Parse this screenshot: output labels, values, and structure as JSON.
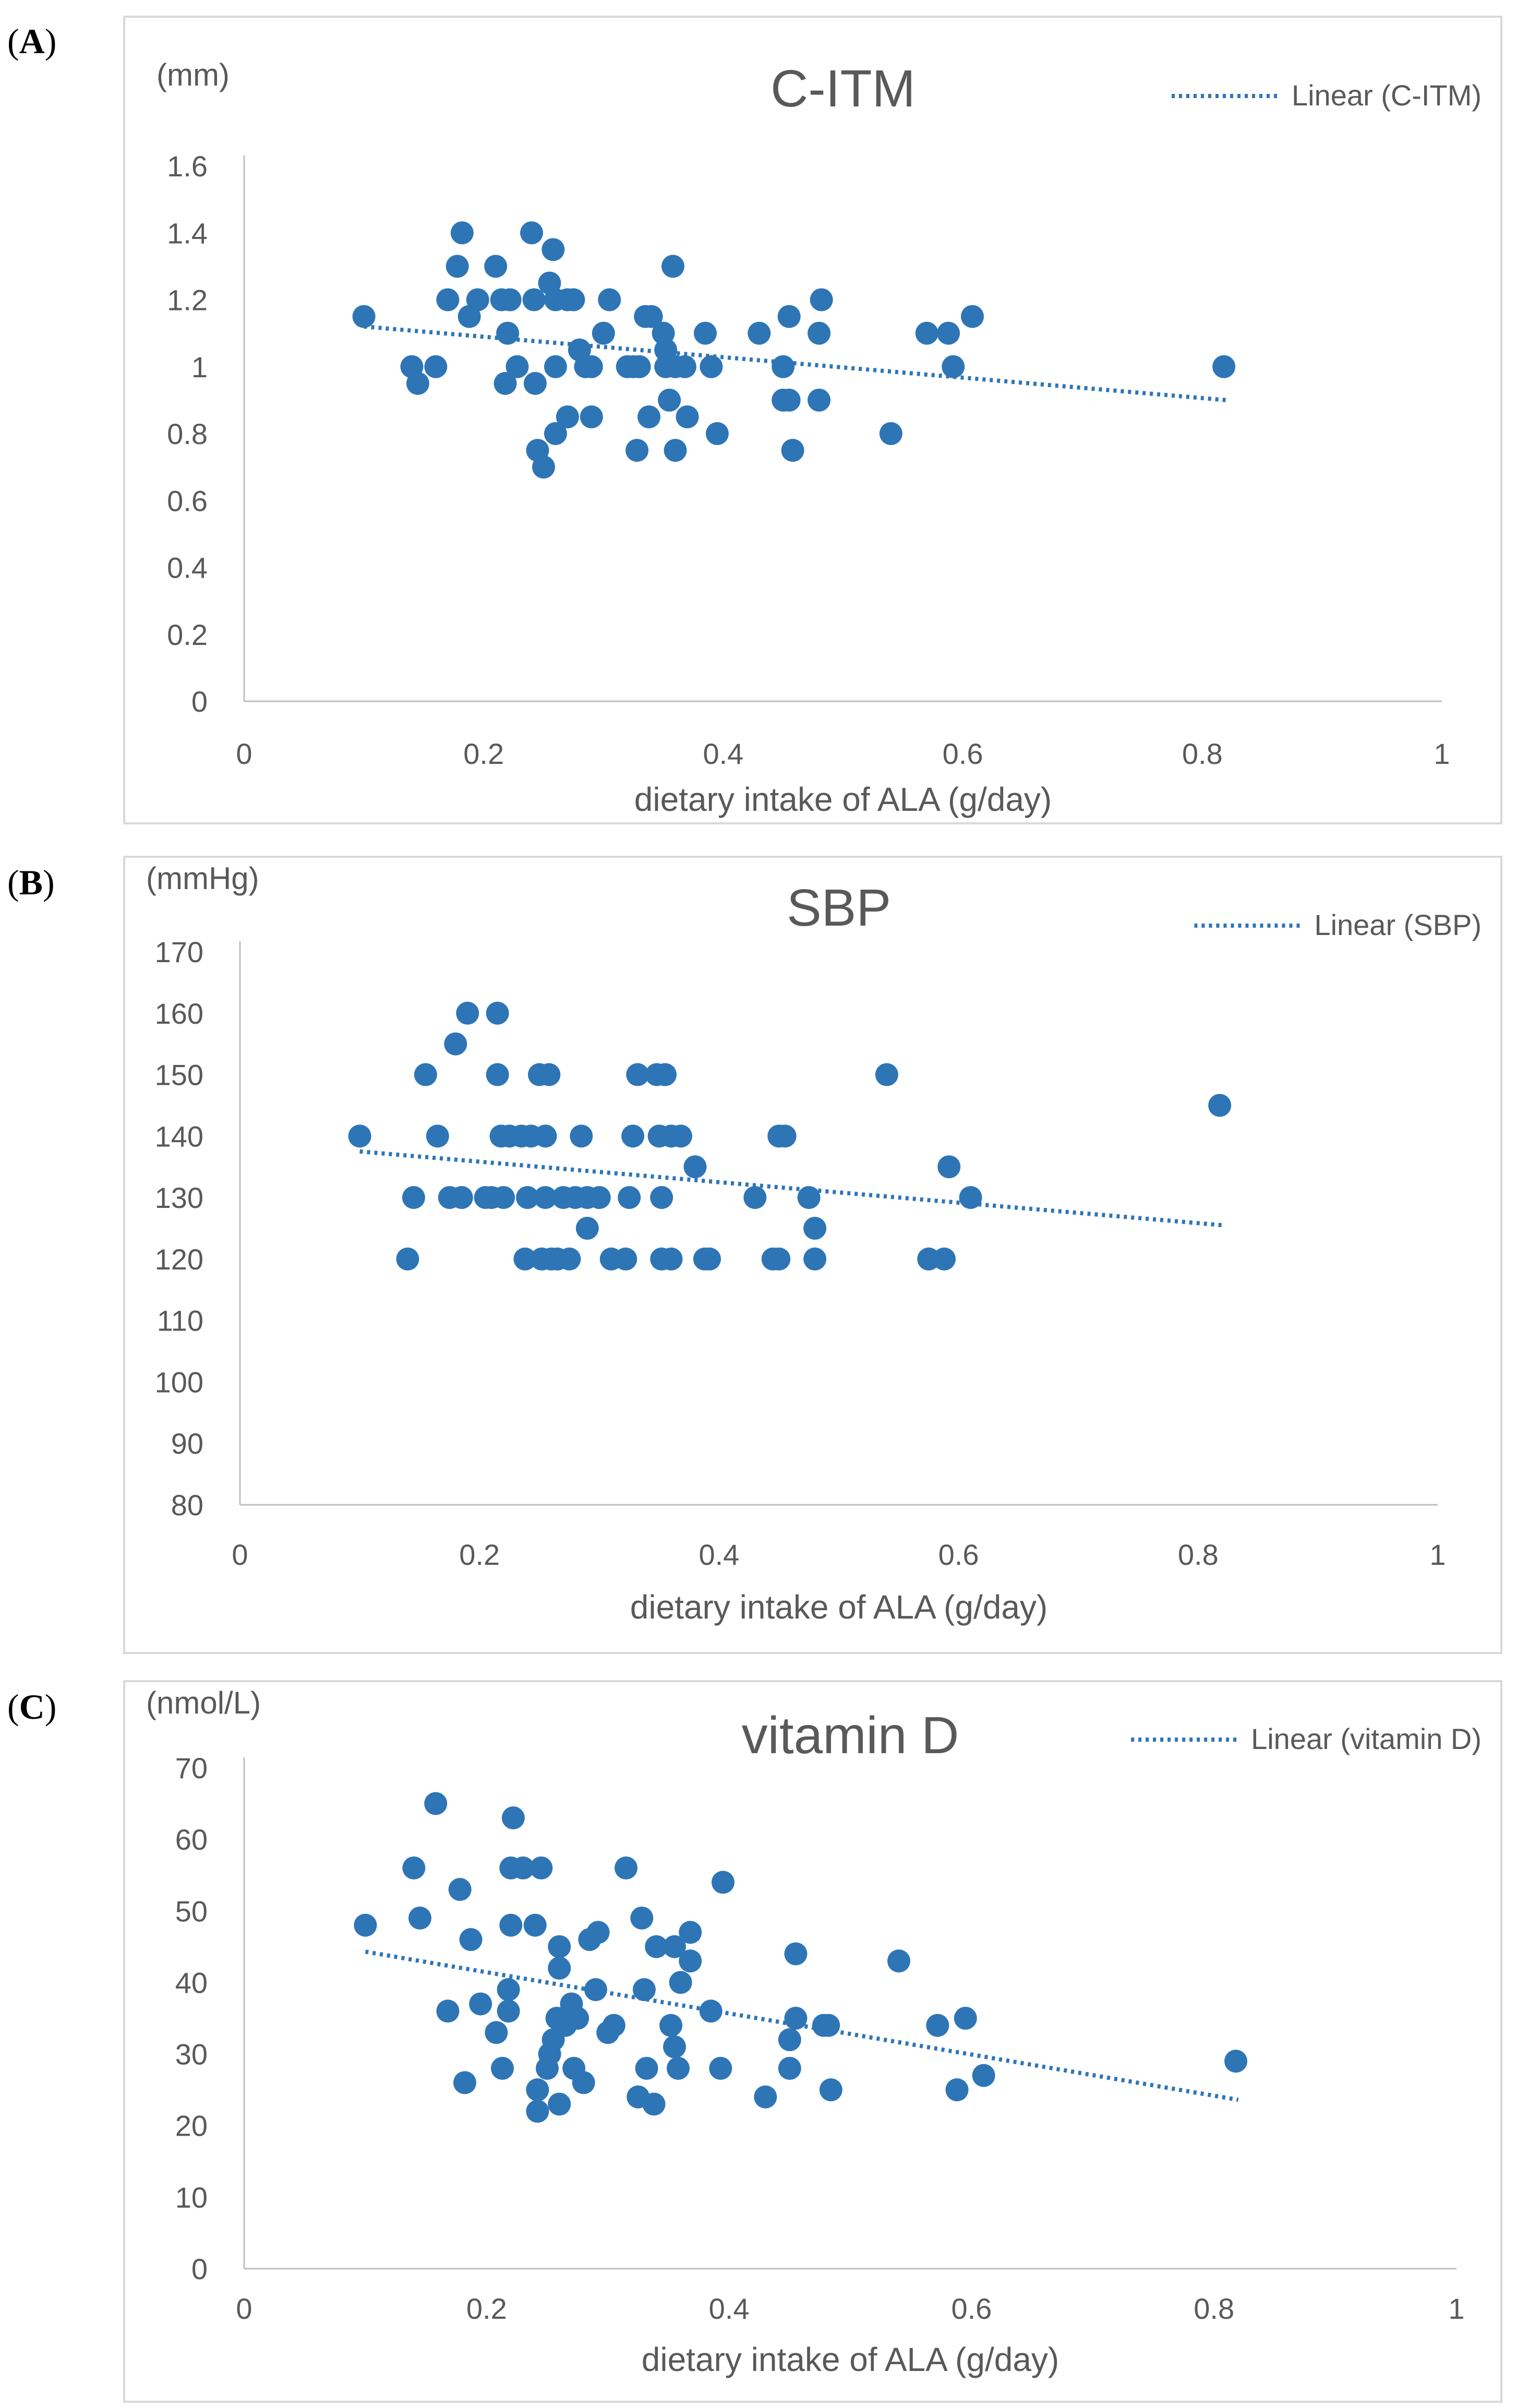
{
  "panels": [
    {
      "letter_open": "(",
      "letter": "A",
      "letter_close": ")"
    },
    {
      "letter_open": "(",
      "letter": "B",
      "letter_close": ")"
    },
    {
      "letter_open": "(",
      "letter": "C",
      "letter_close": ")"
    }
  ],
  "colors": {
    "marker": "#2e75b6",
    "trend": "#2e75b6",
    "axis": "#bfbfbf",
    "text": "#595959",
    "border": "#d9d9d9"
  },
  "chart_data": [
    {
      "type": "scatter",
      "title": "C-ITM",
      "unit_label": "(mm)",
      "xlabel": "dietary intake of ALA (g/day)",
      "xlim": [
        0,
        1
      ],
      "ylim": [
        0,
        1.6
      ],
      "xticks": [
        0,
        0.2,
        0.4,
        0.6,
        0.8,
        1
      ],
      "xtick_labels": [
        "0",
        "0.2",
        "0.4",
        "0.6",
        "0.8",
        "1"
      ],
      "yticks": [
        0,
        0.2,
        0.4,
        0.6,
        0.8,
        1.0,
        1.2,
        1.4,
        1.6
      ],
      "ytick_labels": [
        "0",
        "0.2",
        "0.4",
        "0.6",
        "0.8",
        "1",
        "1.2",
        "1.4",
        "1.6"
      ],
      "legend": "Linear (C-ITM)",
      "legend_position": "top-right",
      "trendline": {
        "x": [
          0.1,
          0.82
        ],
        "y": [
          1.12,
          0.9
        ]
      },
      "points": [
        [
          0.1,
          1.15
        ],
        [
          0.14,
          1.0
        ],
        [
          0.145,
          0.95
        ],
        [
          0.16,
          1.0
        ],
        [
          0.17,
          1.2
        ],
        [
          0.178,
          1.3
        ],
        [
          0.182,
          1.4
        ],
        [
          0.188,
          1.15
        ],
        [
          0.195,
          1.2
        ],
        [
          0.21,
          1.3
        ],
        [
          0.215,
          1.2
        ],
        [
          0.218,
          0.95
        ],
        [
          0.22,
          1.1
        ],
        [
          0.222,
          1.2
        ],
        [
          0.228,
          1.0
        ],
        [
          0.24,
          1.4
        ],
        [
          0.242,
          1.2
        ],
        [
          0.243,
          0.95
        ],
        [
          0.245,
          0.75
        ],
        [
          0.25,
          0.7
        ],
        [
          0.255,
          1.25
        ],
        [
          0.258,
          1.35
        ],
        [
          0.26,
          1.2
        ],
        [
          0.26,
          0.8
        ],
        [
          0.26,
          1.0
        ],
        [
          0.27,
          1.2
        ],
        [
          0.27,
          0.85
        ],
        [
          0.275,
          1.2
        ],
        [
          0.28,
          1.05
        ],
        [
          0.285,
          1.0
        ],
        [
          0.29,
          1.0
        ],
        [
          0.29,
          0.85
        ],
        [
          0.3,
          1.1
        ],
        [
          0.305,
          1.2
        ],
        [
          0.32,
          1.0
        ],
        [
          0.325,
          1.0
        ],
        [
          0.328,
          0.75
        ],
        [
          0.33,
          1.0
        ],
        [
          0.335,
          1.15
        ],
        [
          0.338,
          0.85
        ],
        [
          0.34,
          1.15
        ],
        [
          0.35,
          1.1
        ],
        [
          0.352,
          1.05
        ],
        [
          0.352,
          1.0
        ],
        [
          0.355,
          0.9
        ],
        [
          0.358,
          1.3
        ],
        [
          0.36,
          0.75
        ],
        [
          0.36,
          1.0
        ],
        [
          0.368,
          1.0
        ],
        [
          0.37,
          0.85
        ],
        [
          0.385,
          1.1
        ],
        [
          0.39,
          1.0
        ],
        [
          0.395,
          0.8
        ],
        [
          0.43,
          1.1
        ],
        [
          0.45,
          1.0
        ],
        [
          0.45,
          0.9
        ],
        [
          0.455,
          1.15
        ],
        [
          0.455,
          0.9
        ],
        [
          0.458,
          0.75
        ],
        [
          0.48,
          0.9
        ],
        [
          0.48,
          1.1
        ],
        [
          0.482,
          1.2
        ],
        [
          0.54,
          0.8
        ],
        [
          0.57,
          1.1
        ],
        [
          0.588,
          1.1
        ],
        [
          0.592,
          1.0
        ],
        [
          0.608,
          1.15
        ],
        [
          0.818,
          1.0
        ]
      ]
    },
    {
      "type": "scatter",
      "title": "SBP",
      "unit_label": "(mmHg)",
      "xlabel": "dietary intake of ALA (g/day)",
      "xlim": [
        0,
        1
      ],
      "ylim": [
        80,
        170
      ],
      "xticks": [
        0,
        0.2,
        0.4,
        0.6,
        0.8,
        1
      ],
      "xtick_labels": [
        "0",
        "0.2",
        "0.4",
        "0.6",
        "0.8",
        "1"
      ],
      "yticks": [
        80,
        90,
        100,
        110,
        120,
        130,
        140,
        150,
        160,
        170
      ],
      "ytick_labels": [
        "80",
        "90",
        "100",
        "110",
        "120",
        "130",
        "140",
        "150",
        "160",
        "170"
      ],
      "legend": "Linear (SBP)",
      "legend_position": "top-right",
      "trendline": {
        "x": [
          0.1,
          0.82
        ],
        "y": [
          137.5,
          125.5
        ]
      },
      "points": [
        [
          0.1,
          140
        ],
        [
          0.14,
          120
        ],
        [
          0.145,
          130
        ],
        [
          0.155,
          150
        ],
        [
          0.165,
          140
        ],
        [
          0.175,
          130
        ],
        [
          0.18,
          155
        ],
        [
          0.185,
          130
        ],
        [
          0.19,
          160
        ],
        [
          0.205,
          130
        ],
        [
          0.21,
          130
        ],
        [
          0.215,
          160
        ],
        [
          0.215,
          150
        ],
        [
          0.218,
          140
        ],
        [
          0.22,
          130
        ],
        [
          0.225,
          140
        ],
        [
          0.235,
          140
        ],
        [
          0.238,
          120
        ],
        [
          0.24,
          130
        ],
        [
          0.243,
          140
        ],
        [
          0.25,
          150
        ],
        [
          0.252,
          120
        ],
        [
          0.255,
          140
        ],
        [
          0.255,
          130
        ],
        [
          0.258,
          150
        ],
        [
          0.26,
          120
        ],
        [
          0.265,
          120
        ],
        [
          0.27,
          130
        ],
        [
          0.275,
          120
        ],
        [
          0.28,
          130
        ],
        [
          0.285,
          140
        ],
        [
          0.29,
          125
        ],
        [
          0.29,
          130
        ],
        [
          0.3,
          130
        ],
        [
          0.31,
          120
        ],
        [
          0.322,
          120
        ],
        [
          0.325,
          130
        ],
        [
          0.328,
          140
        ],
        [
          0.332,
          150
        ],
        [
          0.348,
          150
        ],
        [
          0.35,
          140
        ],
        [
          0.352,
          120
        ],
        [
          0.352,
          130
        ],
        [
          0.355,
          150
        ],
        [
          0.36,
          120
        ],
        [
          0.36,
          140
        ],
        [
          0.368,
          140
        ],
        [
          0.38,
          135
        ],
        [
          0.388,
          120
        ],
        [
          0.392,
          120
        ],
        [
          0.43,
          130
        ],
        [
          0.445,
          120
        ],
        [
          0.45,
          120
        ],
        [
          0.45,
          140
        ],
        [
          0.455,
          140
        ],
        [
          0.475,
          130
        ],
        [
          0.48,
          120
        ],
        [
          0.48,
          125
        ],
        [
          0.54,
          150
        ],
        [
          0.575,
          120
        ],
        [
          0.588,
          120
        ],
        [
          0.592,
          135
        ],
        [
          0.61,
          130
        ],
        [
          0.818,
          145
        ]
      ]
    },
    {
      "type": "scatter",
      "title": "vitamin D",
      "unit_label": "(nmol/L)",
      "xlabel": "dietary intake of ALA (g/day)",
      "xlim": [
        0,
        1
      ],
      "ylim": [
        0,
        70
      ],
      "xticks": [
        0,
        0.2,
        0.4,
        0.6,
        0.8,
        1
      ],
      "xtick_labels": [
        "0",
        "0.2",
        "0.4",
        "0.6",
        "0.8",
        "1"
      ],
      "yticks": [
        0,
        10,
        20,
        30,
        40,
        50,
        60,
        70
      ],
      "ytick_labels": [
        "0",
        "10",
        "20",
        "30",
        "40",
        "50",
        "60",
        "70"
      ],
      "legend": "Linear (vitamin D)",
      "legend_position": "top-right",
      "trendline": {
        "x": [
          0.1,
          0.82
        ],
        "y": [
          44.3,
          23.6
        ]
      },
      "points": [
        [
          0.1,
          48
        ],
        [
          0.14,
          56
        ],
        [
          0.145,
          49
        ],
        [
          0.158,
          65
        ],
        [
          0.168,
          36
        ],
        [
          0.178,
          53
        ],
        [
          0.182,
          26
        ],
        [
          0.187,
          46
        ],
        [
          0.195,
          37
        ],
        [
          0.208,
          33
        ],
        [
          0.213,
          28
        ],
        [
          0.218,
          39
        ],
        [
          0.218,
          36
        ],
        [
          0.22,
          48
        ],
        [
          0.22,
          56
        ],
        [
          0.222,
          63
        ],
        [
          0.23,
          56
        ],
        [
          0.24,
          48
        ],
        [
          0.242,
          25
        ],
        [
          0.242,
          22
        ],
        [
          0.245,
          56
        ],
        [
          0.25,
          28
        ],
        [
          0.252,
          30
        ],
        [
          0.255,
          32
        ],
        [
          0.258,
          35
        ],
        [
          0.26,
          45
        ],
        [
          0.26,
          42
        ],
        [
          0.26,
          23
        ],
        [
          0.265,
          34
        ],
        [
          0.27,
          37
        ],
        [
          0.272,
          28
        ],
        [
          0.275,
          35
        ],
        [
          0.28,
          26
        ],
        [
          0.285,
          46
        ],
        [
          0.29,
          39
        ],
        [
          0.292,
          47
        ],
        [
          0.3,
          33
        ],
        [
          0.305,
          34
        ],
        [
          0.315,
          56
        ],
        [
          0.325,
          24
        ],
        [
          0.328,
          49
        ],
        [
          0.33,
          39
        ],
        [
          0.332,
          28
        ],
        [
          0.338,
          23
        ],
        [
          0.34,
          45
        ],
        [
          0.352,
          34
        ],
        [
          0.355,
          31
        ],
        [
          0.355,
          45
        ],
        [
          0.358,
          28
        ],
        [
          0.36,
          40
        ],
        [
          0.368,
          47
        ],
        [
          0.368,
          43
        ],
        [
          0.385,
          36
        ],
        [
          0.393,
          28
        ],
        [
          0.395,
          54
        ],
        [
          0.43,
          24
        ],
        [
          0.45,
          32
        ],
        [
          0.45,
          28
        ],
        [
          0.455,
          44
        ],
        [
          0.455,
          35
        ],
        [
          0.478,
          34
        ],
        [
          0.482,
          34
        ],
        [
          0.484,
          25
        ],
        [
          0.54,
          43
        ],
        [
          0.572,
          34
        ],
        [
          0.588,
          25
        ],
        [
          0.595,
          35
        ],
        [
          0.61,
          27
        ],
        [
          0.818,
          29
        ]
      ]
    }
  ]
}
